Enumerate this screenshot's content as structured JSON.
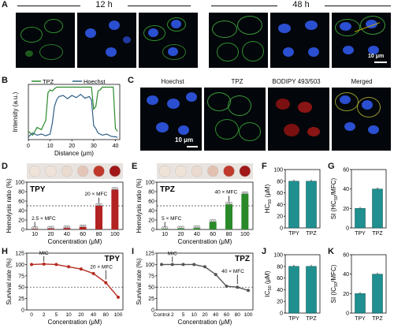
{
  "panel_letters": [
    "A",
    "B",
    "C",
    "D",
    "E",
    "F",
    "G",
    "H",
    "I",
    "J",
    "K"
  ],
  "panel_a": {
    "time_12": "12 h",
    "time_48": "48 h",
    "scale_bar": "10 μm"
  },
  "panel_c": {
    "channels": [
      "Hoechst",
      "TPZ",
      "BODIPY 493/503",
      "Merged"
    ],
    "scale_bar": "10 μm"
  },
  "colors": {
    "tpz_green": "#2a8a2a",
    "hoechst_blue": "#2e5f86",
    "tpy_red": "#b52b1f",
    "teal": "#1f8f8f",
    "dark_red": "#b22222",
    "gray_line": "#555555"
  },
  "chart_data": [
    {
      "panel": "B",
      "type": "line",
      "xlabel": "Distance (μm)",
      "ylabel": "Intensity (a.u.)",
      "xlim": [
        0,
        42
      ],
      "xticks": [
        0,
        10,
        20,
        30,
        40
      ],
      "legend": [
        "TPZ",
        "Hoechst"
      ],
      "series": [
        {
          "name": "TPZ",
          "x": [
            0,
            2,
            4,
            6,
            8,
            9,
            10,
            11,
            12,
            13,
            14,
            16,
            18,
            20,
            22,
            24,
            26,
            28,
            29,
            30,
            31,
            32,
            33,
            34,
            35,
            36,
            37,
            38,
            39,
            40,
            41
          ],
          "values": [
            0.15,
            0.08,
            0.22,
            0.18,
            0.35,
            0.85,
            0.9,
            0.88,
            0.92,
            0.95,
            0.95,
            0.95,
            0.95,
            0.95,
            0.95,
            0.95,
            0.95,
            0.95,
            0.95,
            0.55,
            0.6,
            0.88,
            0.9,
            0.95,
            0.95,
            0.95,
            0.95,
            0.95,
            0.95,
            0.2,
            0.15
          ]
        },
        {
          "name": "Hoechst",
          "x": [
            0,
            2,
            4,
            6,
            8,
            10,
            11,
            12,
            13,
            14,
            16,
            18,
            20,
            22,
            24,
            26,
            28,
            29,
            30,
            31,
            32,
            34,
            36,
            38,
            40,
            41
          ],
          "values": [
            0.05,
            0.12,
            0.08,
            0.1,
            0.07,
            0.1,
            0.3,
            0.6,
            0.72,
            0.78,
            0.8,
            0.74,
            0.8,
            0.76,
            0.82,
            0.75,
            0.78,
            0.72,
            0.25,
            0.2,
            0.12,
            0.08,
            0.1,
            0.06,
            0.05,
            0.04
          ]
        }
      ]
    },
    {
      "panel": "D",
      "type": "bar",
      "title": "TPY",
      "xlabel": "Concentration (μM)",
      "ylabel": "Hemolysis ratio (%)",
      "categories": [
        "10",
        "20",
        "40",
        "60",
        "80",
        "100"
      ],
      "values": [
        1,
        2,
        3,
        5,
        50,
        84
      ],
      "ylim": [
        0,
        100
      ],
      "yticks": [
        0,
        20,
        40,
        60,
        80,
        100
      ],
      "reference_line": 50,
      "annotations": [
        "2.5 × MFC",
        "20 × MFC"
      ]
    },
    {
      "panel": "E",
      "type": "bar",
      "title": "TPZ",
      "xlabel": "Concentration (μM)",
      "ylabel": "Hemolysis ratio (%)",
      "categories": [
        "10",
        "20",
        "40",
        "60",
        "80",
        "100"
      ],
      "values": [
        1,
        2,
        3,
        16,
        53,
        75
      ],
      "ylim": [
        0,
        100
      ],
      "yticks": [
        0,
        20,
        40,
        60,
        80,
        100
      ],
      "reference_line": 50,
      "annotations": [
        "5 × MFC",
        "40 × MFC"
      ]
    },
    {
      "panel": "F",
      "type": "bar",
      "ylabel": "HC50 (μM)",
      "ylabel_parts": [
        "HC",
        "50",
        " (μM)"
      ],
      "categories": [
        "TPY",
        "TPZ"
      ],
      "values": [
        80,
        80
      ],
      "ylim": [
        0,
        100
      ],
      "yticks": [
        0,
        20,
        40,
        60,
        80,
        100
      ]
    },
    {
      "panel": "G",
      "type": "bar",
      "ylabel": "SI (HC50/MFC)",
      "ylabel_parts": [
        "SI (HC",
        "50",
        "/MFC)"
      ],
      "categories": [
        "TPY",
        "TPZ"
      ],
      "values": [
        20,
        40
      ],
      "ylim": [
        0,
        60
      ],
      "yticks": [
        0,
        20,
        40,
        60
      ]
    },
    {
      "panel": "H",
      "type": "line",
      "title": "TPY",
      "xlabel": "Concentration (μM)",
      "ylabel": "Survival rate (%)",
      "categories": [
        "0",
        "2",
        "5",
        "10",
        "20",
        "40",
        "80",
        "100"
      ],
      "values": [
        100,
        101,
        100,
        95,
        90,
        80,
        60,
        28
      ],
      "ylim": [
        0,
        125
      ],
      "yticks": [
        0,
        25,
        50,
        75,
        100,
        125
      ],
      "reference_line": 50,
      "annotations": [
        "MIC",
        "20 × MFC"
      ]
    },
    {
      "panel": "I",
      "type": "line",
      "title": "TPZ",
      "xlabel": "Concentration (μM)",
      "ylabel": "Survival rate (%)",
      "categories": [
        "Control",
        "2",
        "5",
        "10",
        "20",
        "40",
        "60",
        "80",
        "100"
      ],
      "values": [
        100,
        100,
        100,
        100,
        95,
        78,
        52,
        50,
        43
      ],
      "ylim": [
        0,
        125
      ],
      "yticks": [
        0,
        25,
        50,
        75,
        100,
        125
      ],
      "reference_line": 50,
      "annotations": [
        "MIC",
        "40 × MFC"
      ]
    },
    {
      "panel": "J",
      "type": "bar",
      "ylabel": "IC50 (μM)",
      "ylabel_parts": [
        "IC",
        "50",
        " (μM)"
      ],
      "categories": [
        "TPY",
        "TPZ"
      ],
      "values": [
        80,
        80
      ],
      "ylim": [
        0,
        100
      ],
      "yticks": [
        0,
        20,
        40,
        60,
        80,
        100
      ]
    },
    {
      "panel": "K",
      "type": "bar",
      "ylabel": "SI (IC50/MFC)",
      "ylabel_parts": [
        "SI (IC",
        "50",
        "/MFC)"
      ],
      "categories": [
        "TPY",
        "TPZ"
      ],
      "values": [
        20,
        40
      ],
      "ylim": [
        0,
        60
      ],
      "yticks": [
        0,
        20,
        40,
        60
      ]
    }
  ]
}
